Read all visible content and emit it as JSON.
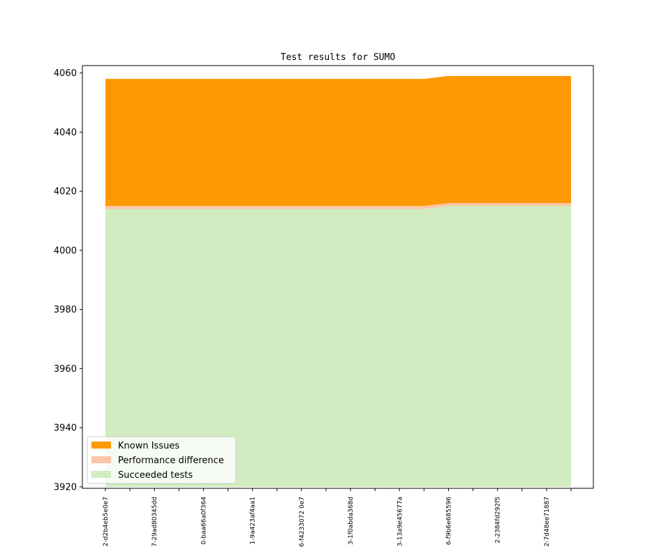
{
  "chart_data": {
    "type": "area",
    "title": "Test results for SUMO",
    "xlabel": "",
    "ylabel": "",
    "ylim": [
      3919.5,
      4062.5
    ],
    "yticks": [
      3920,
      3940,
      3960,
      3980,
      4000,
      4020,
      4040,
      4060
    ],
    "x_tick_labels": [
      "2-d2b4eb5e0e7",
      "7-29ad80345dd",
      "0-baa66a0f364",
      "1-9a423af4aa1",
      "6-f4233072 0e7",
      "3-1f0abda368d",
      "3-13a9e45677a",
      "6-f9b6e685596",
      "2-2384fd292f5",
      "2-7d48ee71887"
    ],
    "stack_base": 3920,
    "series": [
      {
        "name": "Succeeded tests",
        "color": "#d0ecc0",
        "values": [
          4014,
          4014,
          4014,
          4014,
          4014,
          4014,
          4014,
          4014,
          4014,
          4014,
          4014,
          4014,
          4014,
          4014,
          4015,
          4015,
          4015,
          4015,
          4015,
          4015
        ]
      },
      {
        "name": "Performance difference",
        "color": "#fcc5a5",
        "values": [
          1,
          1,
          1,
          1,
          1,
          1,
          1,
          1,
          1,
          1,
          1,
          1,
          1,
          1,
          1,
          1,
          1,
          1,
          1,
          1
        ]
      },
      {
        "name": "Known Issues",
        "color": "#fd9902",
        "values": [
          43,
          43,
          43,
          43,
          43,
          43,
          43,
          43,
          43,
          43,
          43,
          43,
          43,
          43,
          43,
          43,
          43,
          43,
          43,
          43
        ]
      }
    ],
    "legend": {
      "placement": "lower-left",
      "entries": [
        "Known Issues",
        "Performance difference",
        "Succeeded tests"
      ]
    }
  }
}
